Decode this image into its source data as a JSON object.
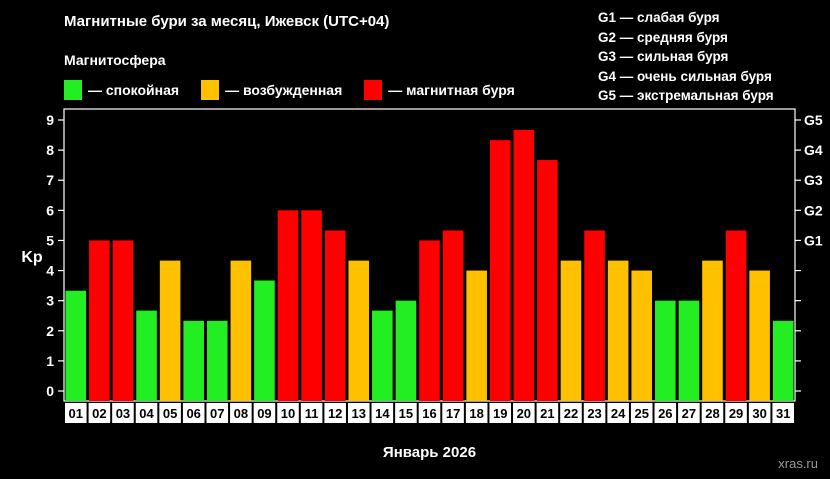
{
  "header": {
    "title": "Магнитные бури за месяц, Ижевск (UTC+04)",
    "subtitle": "Магнитосфера"
  },
  "legend": [
    {
      "label": "— спокойная",
      "color": "#22ee22"
    },
    {
      "label": "— возбужденная",
      "color": "#ffc000"
    },
    {
      "label": "— магнитная буря",
      "color": "#ff0000"
    }
  ],
  "storm_levels": [
    "G1 — слабая буря",
    "G2 — средняя буря",
    "G3 — сильная буря",
    "G4 — очень сильная буря",
    "G5 — экстремальная буря"
  ],
  "watermark": "xras.ru",
  "chart_data": {
    "type": "bar",
    "xlabel": "Январь 2026",
    "ylabel": "Kp",
    "ylim": [
      0,
      9
    ],
    "yticks": [
      0,
      1,
      2,
      3,
      4,
      5,
      6,
      7,
      8,
      9
    ],
    "right_axis_labels": [
      {
        "value": 5,
        "label": "G1"
      },
      {
        "value": 6,
        "label": "G2"
      },
      {
        "value": 7,
        "label": "G3"
      },
      {
        "value": 8,
        "label": "G4"
      },
      {
        "value": 9,
        "label": "G5"
      }
    ],
    "categories": [
      "01",
      "02",
      "03",
      "04",
      "05",
      "06",
      "07",
      "08",
      "09",
      "10",
      "11",
      "12",
      "13",
      "14",
      "15",
      "16",
      "17",
      "18",
      "19",
      "20",
      "21",
      "22",
      "23",
      "24",
      "25",
      "26",
      "27",
      "28",
      "29",
      "30",
      "31"
    ],
    "values": [
      3.33,
      5,
      5,
      2.67,
      4.33,
      2.33,
      2.33,
      4.33,
      3.67,
      6,
      6,
      5.33,
      4.33,
      2.67,
      3,
      5,
      5.33,
      4,
      8.33,
      8.67,
      7.67,
      4.33,
      5.33,
      4.33,
      4,
      3,
      3,
      4.33,
      5.33,
      4,
      2.33
    ],
    "levels": [
      "quiet",
      "storm",
      "storm",
      "quiet",
      "active",
      "quiet",
      "quiet",
      "active",
      "quiet",
      "storm",
      "storm",
      "storm",
      "active",
      "quiet",
      "quiet",
      "storm",
      "storm",
      "active",
      "storm",
      "storm",
      "storm",
      "active",
      "storm",
      "active",
      "active",
      "quiet",
      "quiet",
      "active",
      "storm",
      "active",
      "quiet"
    ],
    "level_colors": {
      "quiet": "#22ee22",
      "active": "#ffc000",
      "storm": "#ff0000"
    }
  }
}
